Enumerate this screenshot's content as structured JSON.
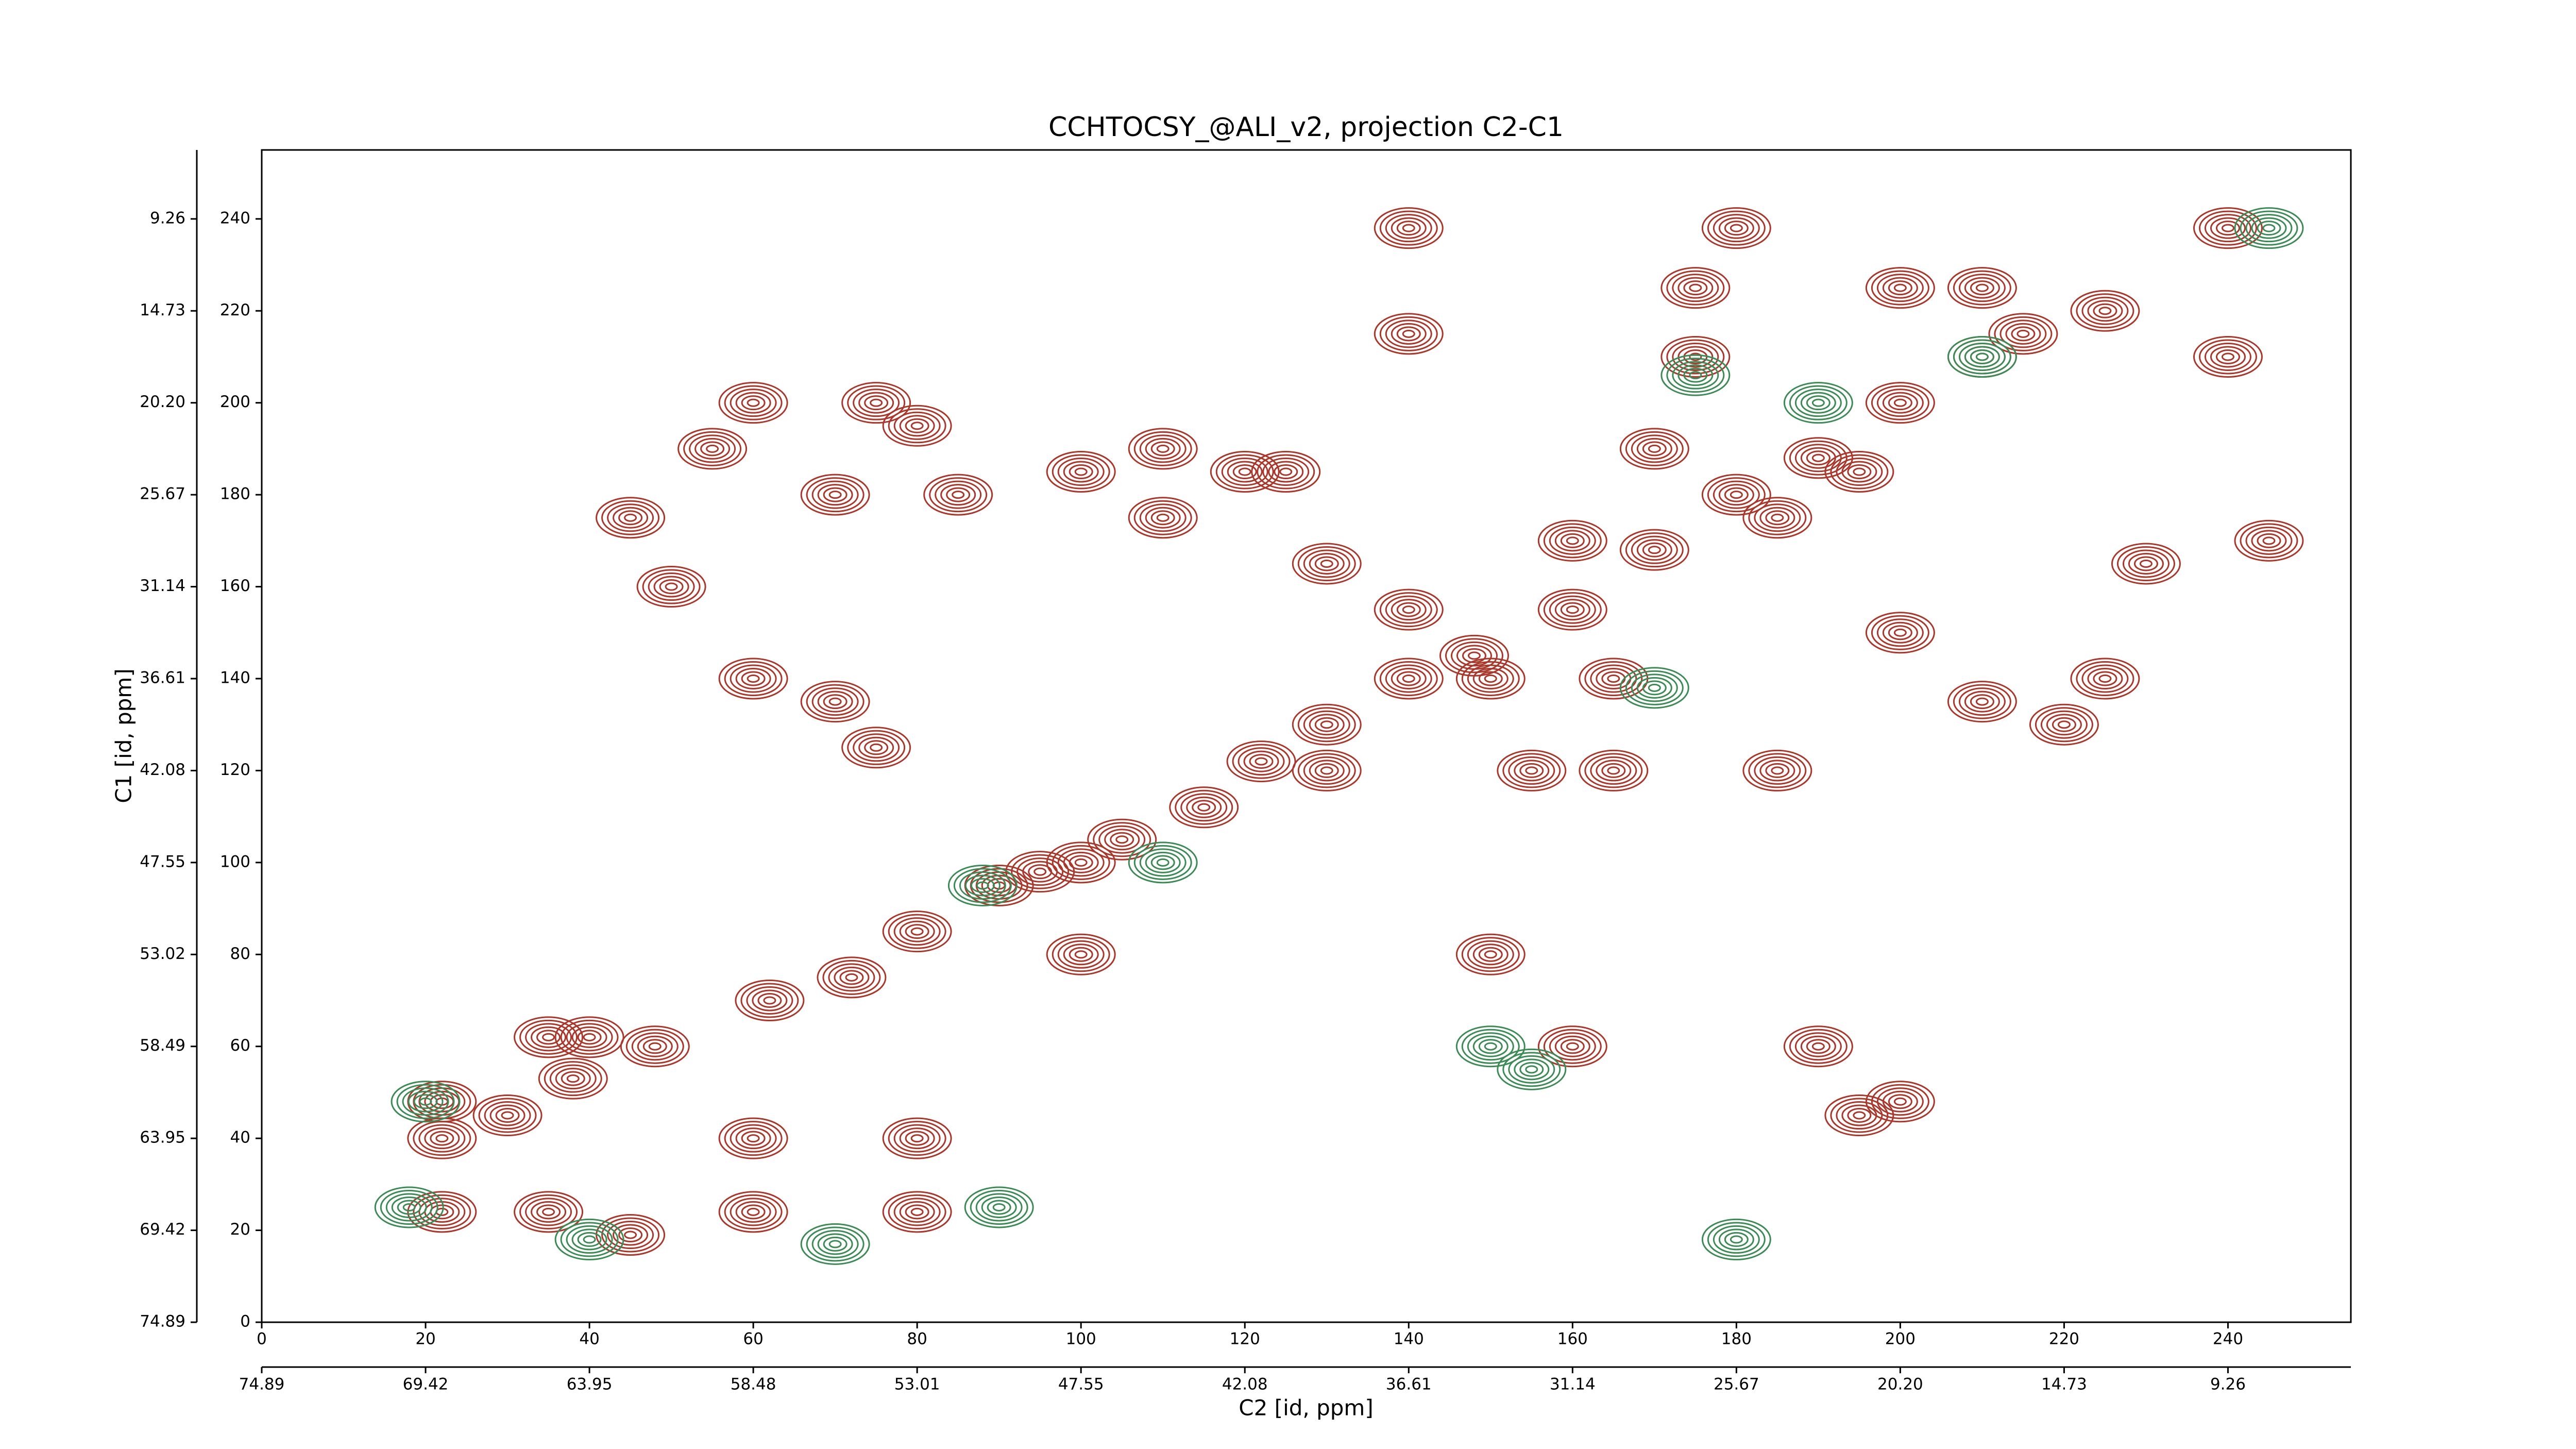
{
  "chart_data": {
    "type": "contour",
    "title": "CCHTOCSY_@ALI_v2, projection C2-C1",
    "xlabel": "C2 [id, ppm]",
    "ylabel": "C1 [id, ppm]",
    "xlim": [
      0,
      255
    ],
    "ylim": [
      0,
      255
    ],
    "xticks": [
      0,
      20,
      40,
      60,
      80,
      100,
      120,
      140,
      160,
      180,
      200,
      220,
      240
    ],
    "yticks": [
      0,
      20,
      40,
      60,
      80,
      100,
      120,
      140,
      160,
      180,
      200,
      220,
      240
    ],
    "x_ppm_ticks": [
      {
        "value": 0,
        "label": "74.89"
      },
      {
        "value": 20,
        "label": "69.42"
      },
      {
        "value": 40,
        "label": "63.95"
      },
      {
        "value": 60,
        "label": "58.48"
      },
      {
        "value": 80,
        "label": "53.01"
      },
      {
        "value": 100,
        "label": "47.55"
      },
      {
        "value": 120,
        "label": "42.08"
      },
      {
        "value": 140,
        "label": "36.61"
      },
      {
        "value": 160,
        "label": "31.14"
      },
      {
        "value": 180,
        "label": "25.67"
      },
      {
        "value": 200,
        "label": "20.20"
      },
      {
        "value": 220,
        "label": "14.73"
      },
      {
        "value": 240,
        "label": "9.26"
      }
    ],
    "y_ppm_ticks": [
      {
        "value": 0,
        "label": "74.89"
      },
      {
        "value": 20,
        "label": "69.42"
      },
      {
        "value": 40,
        "label": "63.95"
      },
      {
        "value": 60,
        "label": "58.49"
      },
      {
        "value": 80,
        "label": "53.02"
      },
      {
        "value": 100,
        "label": "47.55"
      },
      {
        "value": 120,
        "label": "42.08"
      },
      {
        "value": 140,
        "label": "36.61"
      },
      {
        "value": 160,
        "label": "31.14"
      },
      {
        "value": 180,
        "label": "25.67"
      },
      {
        "value": 200,
        "label": "20.20"
      },
      {
        "value": 220,
        "label": "14.73"
      },
      {
        "value": 240,
        "label": "9.26"
      }
    ],
    "series": [
      {
        "color": "#a8372c",
        "x": [
          22,
          30,
          38,
          48,
          62,
          72,
          80,
          90,
          95,
          105,
          115,
          122,
          130,
          140,
          148,
          160,
          170,
          180,
          190,
          200,
          210,
          215,
          22,
          35,
          60,
          80,
          45,
          22,
          35,
          40,
          60,
          80,
          100,
          130,
          155,
          165,
          185,
          150,
          165,
          120,
          125,
          110,
          50,
          60,
          70,
          75,
          100,
          150,
          160,
          190,
          195,
          200,
          175,
          175,
          140,
          200,
          210,
          225,
          240,
          180,
          140,
          230,
          245,
          240,
          200,
          210,
          220,
          225,
          45,
          60,
          75,
          80,
          85,
          70,
          55,
          100,
          110,
          130,
          140,
          160,
          170,
          185,
          195
        ],
        "y": [
          40,
          45,
          53,
          60,
          70,
          75,
          85,
          95,
          98,
          105,
          112,
          122,
          130,
          140,
          145,
          155,
          168,
          180,
          188,
          200,
          210,
          215,
          24,
          24,
          24,
          24,
          19,
          48,
          62,
          62,
          40,
          40,
          100,
          120,
          120,
          120,
          120,
          140,
          140,
          185,
          185,
          190,
          160,
          140,
          135,
          125,
          80,
          80,
          60,
          60,
          45,
          48,
          210,
          225,
          215,
          225,
          225,
          220,
          238,
          238,
          238,
          165,
          170,
          210,
          150,
          135,
          130,
          140,
          175,
          200,
          200,
          195,
          180,
          180,
          190,
          185,
          175,
          165,
          155,
          170,
          190,
          175,
          185
        ]
      },
      {
        "color": "#3e8a57",
        "x": [
          20,
          18,
          90,
          88,
          110,
          150,
          155,
          170,
          175,
          190,
          210,
          245,
          40,
          70,
          180
        ],
        "y": [
          48,
          25,
          25,
          95,
          100,
          60,
          55,
          138,
          206,
          200,
          210,
          238,
          18,
          17,
          18
        ]
      }
    ]
  }
}
